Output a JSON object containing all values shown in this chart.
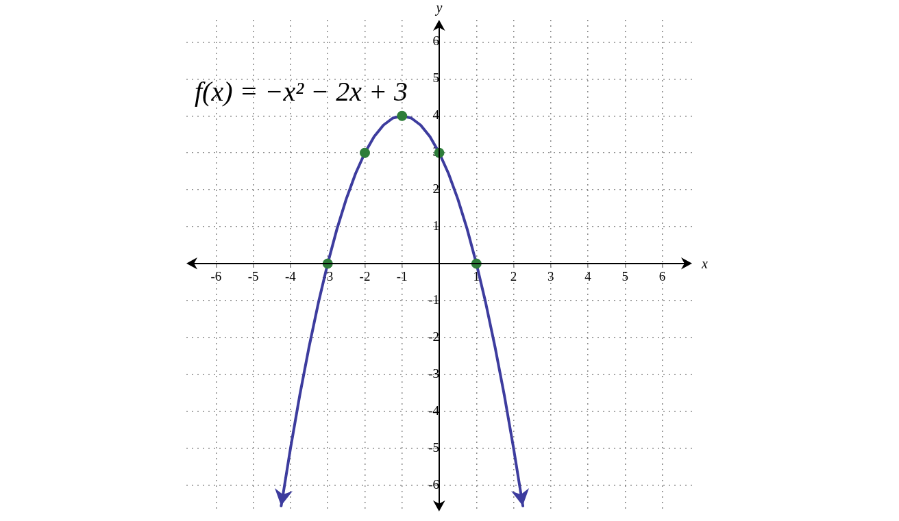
{
  "chart_data": {
    "type": "line",
    "xlabel": "x",
    "ylabel": "y",
    "annotations": [
      "f(x) = −x² − 2x + 3"
    ],
    "xlim": [
      -6.8,
      6.8
    ],
    "ylim": [
      -6.7,
      6.6
    ],
    "xticks": [
      -6,
      -5,
      -4,
      -3,
      -2,
      -1,
      1,
      2,
      3,
      4,
      5,
      6
    ],
    "yticks": [
      -6,
      -5,
      -4,
      -3,
      -2,
      -1,
      1,
      2,
      3,
      4,
      5,
      6
    ],
    "grid": true,
    "legend": false,
    "series": [
      {
        "color": "#3d3c9e",
        "marker": "none",
        "line_style": "solid",
        "x": [
          -4.25,
          -4,
          -3.75,
          -3.5,
          -3.25,
          -3,
          -2.75,
          -2.5,
          -2.25,
          -2,
          -1.75,
          -1.5,
          -1.25,
          -1,
          -0.75,
          -0.5,
          -0.25,
          0,
          0.25,
          0.5,
          0.75,
          1,
          1.25,
          1.5,
          1.75,
          2,
          2.25
        ],
        "values": [
          -6.56,
          -5,
          -3.56,
          -2.25,
          -1.06,
          0,
          0.94,
          1.75,
          2.44,
          3,
          3.44,
          3.75,
          3.94,
          4,
          3.94,
          3.75,
          3.44,
          3,
          2.44,
          1.75,
          0.94,
          0,
          -1.06,
          -2.25,
          -3.56,
          -5,
          -6.56
        ]
      },
      {
        "type": "scatter",
        "color": "#2e7d3a",
        "marker": "circle",
        "x": [
          -3,
          -2,
          -1,
          0,
          1
        ],
        "values": [
          0,
          3,
          4,
          3,
          0
        ]
      }
    ]
  }
}
